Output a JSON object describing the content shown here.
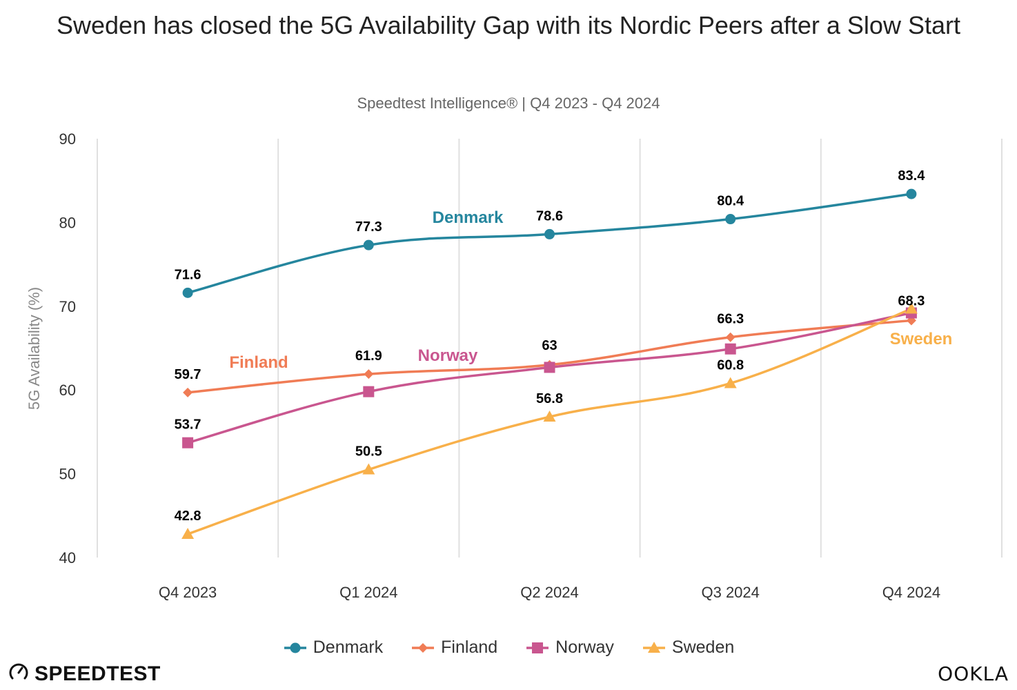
{
  "header": {
    "title": "Sweden has closed the 5G Availability Gap with its Nordic Peers after a Slow Start",
    "subtitle": "Speedtest Intelligence® | Q4 2023 - Q4 2024"
  },
  "branding": {
    "left_logo": "SPEEDTEST",
    "left_icon": "speedometer-icon",
    "right_logo": "OOKLA"
  },
  "chart_data": {
    "type": "line",
    "title": "Sweden has closed the 5G Availability Gap with its Nordic Peers after a Slow Start",
    "subtitle": "Speedtest Intelligence® | Q4 2023 - Q4 2024",
    "xlabel": "",
    "ylabel": "5G Availability (%)",
    "ylim": [
      40,
      90
    ],
    "yticks": [
      40,
      50,
      60,
      70,
      80,
      90
    ],
    "categories": [
      "Q4 2023",
      "Q1 2024",
      "Q2 2024",
      "Q3 2024",
      "Q4 2024"
    ],
    "grid": "vertical",
    "legend_position": "bottom",
    "series": [
      {
        "name": "Denmark",
        "color": "#25869e",
        "marker": "circle",
        "values": [
          71.6,
          77.3,
          78.6,
          80.4,
          83.4
        ],
        "labels": [
          "71.6",
          "77.3",
          "78.6",
          "80.4",
          "83.4"
        ],
        "inline_label": "Denmark"
      },
      {
        "name": "Finland",
        "color": "#f07c55",
        "marker": "diamond",
        "values": [
          59.7,
          61.9,
          63.0,
          66.3,
          68.3
        ],
        "labels": [
          "59.7",
          "61.9",
          "63",
          "66.3",
          "68.3"
        ],
        "inline_label": "Finland"
      },
      {
        "name": "Norway",
        "color": "#c9568f",
        "marker": "square",
        "values": [
          53.7,
          59.8,
          62.7,
          64.9,
          69.2
        ],
        "labels": [
          "53.7",
          "",
          "",
          "",
          ""
        ],
        "inline_label": "Norway"
      },
      {
        "name": "Sweden",
        "color": "#f8b04a",
        "marker": "triangle",
        "values": [
          42.8,
          50.5,
          56.8,
          60.8,
          69.7
        ],
        "labels": [
          "42.8",
          "50.5",
          "56.8",
          "60.8",
          ""
        ],
        "inline_label": "Sweden"
      }
    ]
  }
}
